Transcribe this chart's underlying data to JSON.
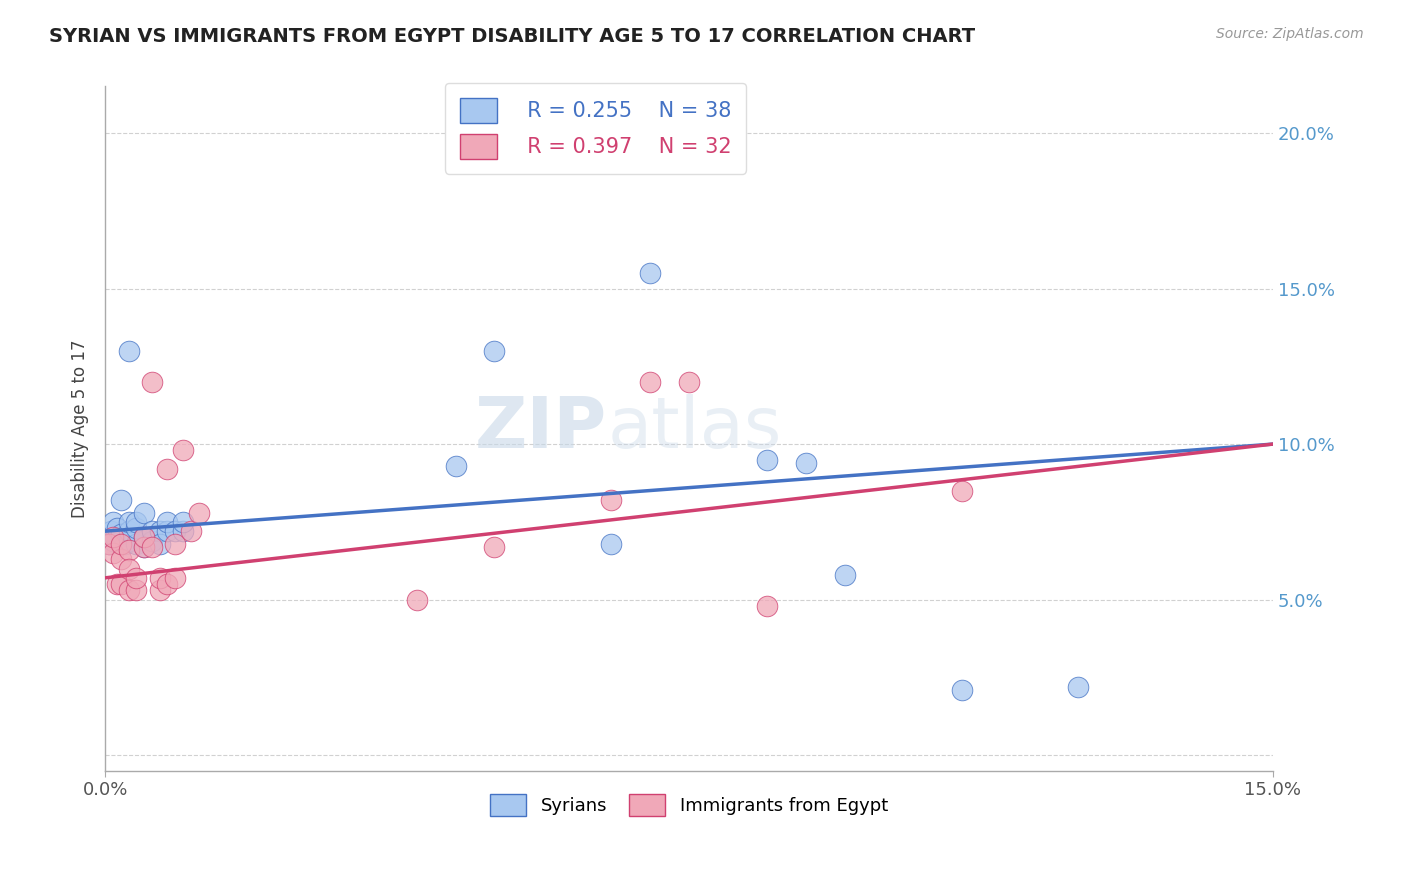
{
  "title": "SYRIAN VS IMMIGRANTS FROM EGYPT DISABILITY AGE 5 TO 17 CORRELATION CHART",
  "source": "Source: ZipAtlas.com",
  "xlabel": "",
  "ylabel": "Disability Age 5 to 17",
  "xlim": [
    0.0,
    0.15
  ],
  "ylim": [
    -0.005,
    0.215
  ],
  "xticks": [
    0.0,
    0.15
  ],
  "xtick_labels": [
    "0.0%",
    "15.0%"
  ],
  "yticks": [
    0.0,
    0.05,
    0.1,
    0.15,
    0.2
  ],
  "ytick_labels": [
    "",
    "5.0%",
    "10.0%",
    "15.0%",
    "20.0%"
  ],
  "legend_r1": "R = 0.255",
  "legend_n1": "N = 38",
  "legend_r2": "R = 0.397",
  "legend_n2": "N = 32",
  "color_syrian": "#A8C8F0",
  "color_egypt": "#F0A8B8",
  "color_line_syrian": "#4472C4",
  "color_line_egypt": "#D04070",
  "watermark_zip": "ZIP",
  "watermark_atlas": "atlas",
  "legend_label1": "Syrians",
  "legend_label2": "Immigrants from Egypt",
  "syrians_x": [
    0.0005,
    0.0008,
    0.001,
    0.001,
    0.0012,
    0.0015,
    0.002,
    0.002,
    0.002,
    0.0025,
    0.003,
    0.003,
    0.003,
    0.003,
    0.004,
    0.004,
    0.004,
    0.005,
    0.005,
    0.005,
    0.006,
    0.006,
    0.007,
    0.007,
    0.008,
    0.008,
    0.009,
    0.01,
    0.01,
    0.045,
    0.05,
    0.065,
    0.07,
    0.085,
    0.09,
    0.095,
    0.11,
    0.125
  ],
  "syrians_y": [
    0.068,
    0.072,
    0.069,
    0.075,
    0.07,
    0.073,
    0.068,
    0.071,
    0.082,
    0.068,
    0.069,
    0.072,
    0.075,
    0.13,
    0.068,
    0.073,
    0.075,
    0.067,
    0.07,
    0.078,
    0.069,
    0.072,
    0.072,
    0.068,
    0.072,
    0.075,
    0.072,
    0.072,
    0.075,
    0.093,
    0.13,
    0.068,
    0.155,
    0.095,
    0.094,
    0.058,
    0.021,
    0.022
  ],
  "egypt_x": [
    0.0005,
    0.001,
    0.001,
    0.0015,
    0.002,
    0.002,
    0.002,
    0.003,
    0.003,
    0.003,
    0.004,
    0.004,
    0.005,
    0.005,
    0.006,
    0.006,
    0.007,
    0.007,
    0.008,
    0.008,
    0.009,
    0.009,
    0.01,
    0.011,
    0.012,
    0.04,
    0.05,
    0.065,
    0.07,
    0.075,
    0.085,
    0.11
  ],
  "egypt_y": [
    0.068,
    0.065,
    0.07,
    0.055,
    0.063,
    0.068,
    0.055,
    0.066,
    0.053,
    0.06,
    0.053,
    0.057,
    0.067,
    0.07,
    0.067,
    0.12,
    0.053,
    0.057,
    0.092,
    0.055,
    0.057,
    0.068,
    0.098,
    0.072,
    0.078,
    0.05,
    0.067,
    0.082,
    0.12,
    0.12,
    0.048,
    0.085
  ],
  "line_sy_x0": 0.0,
  "line_sy_y0": 0.072,
  "line_sy_x1": 0.15,
  "line_sy_y1": 0.1,
  "line_eg_x0": 0.0,
  "line_eg_y0": 0.057,
  "line_eg_x1": 0.15,
  "line_eg_y1": 0.1
}
